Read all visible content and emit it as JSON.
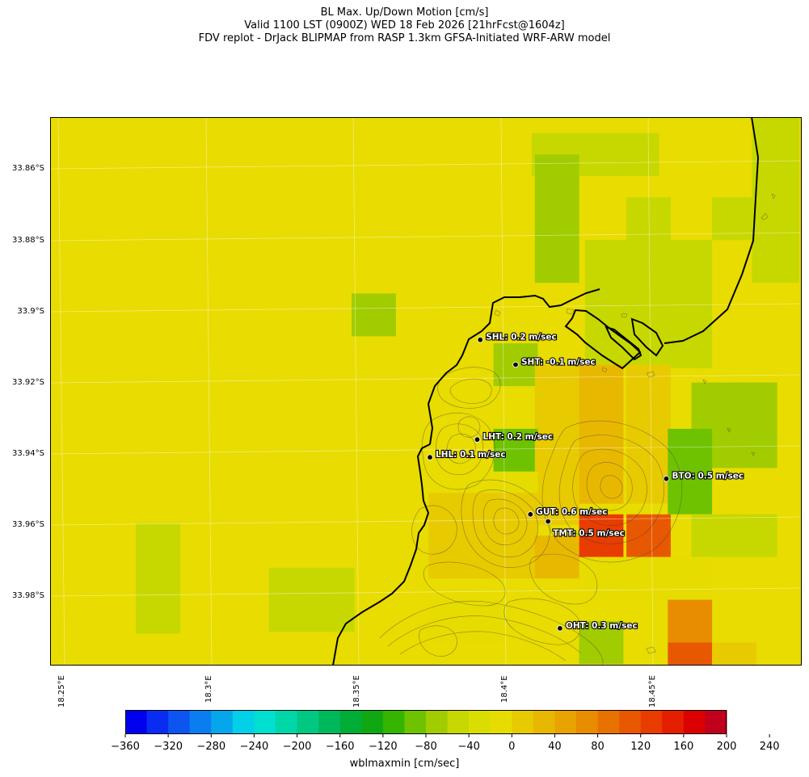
{
  "title": {
    "line1": "BL Max. Up/Down Motion [cm/s]",
    "line2": "Valid 1100 LST (0900Z) WED 18 Feb 2026 [21hrFcst@1604z]",
    "line3": "FDV replot - DrJack BLIPMAP from RASP 1.3km GFSA-Initiated WRF-ARW model"
  },
  "lat_labels": [
    "33.86°S",
    "33.88°S",
    "33.9°S",
    "33.92°S",
    "33.94°S",
    "33.96°S",
    "33.98°S"
  ],
  "lon_labels": [
    "18.25°E",
    "18.3°E",
    "18.35°E",
    "18.4°E",
    "18.45°E"
  ],
  "stations": [
    {
      "code": "SHL",
      "label": "SHL: 0.2 m/sec",
      "lon": 18.392,
      "lat": -33.908
    },
    {
      "code": "SHT",
      "label": "SHT: -0.1 m/sec",
      "lon": 18.404,
      "lat": -33.915
    },
    {
      "code": "LHT",
      "label": "LHT: 0.2 m/sec",
      "lon": 18.391,
      "lat": -33.936
    },
    {
      "code": "LHL",
      "label": "LHL: 0.1 m/sec",
      "lon": 18.375,
      "lat": -33.941
    },
    {
      "code": "BTO",
      "label": "BTO: 0.5 m/sec",
      "lon": 18.455,
      "lat": -33.947
    },
    {
      "code": "GUT",
      "label": "GUT: 0.6 m/sec",
      "lon": 18.409,
      "lat": -33.957
    },
    {
      "code": "TMT",
      "label": "TMT: 0.5 m/sec",
      "lon": 18.415,
      "lat": -33.959
    },
    {
      "code": "OHT",
      "label": "OHT: 0.3 m/sec",
      "lon": 18.419,
      "lat": -33.989
    }
  ],
  "colorbar": {
    "ticks": [
      "−360",
      "−320",
      "−280",
      "−240",
      "−200",
      "−160",
      "−120",
      "−80",
      "−40",
      "0",
      "40",
      "80",
      "120",
      "160",
      "200",
      "240"
    ],
    "label": "wblmaxmin [cm/sec]",
    "colors": [
      "#0000ee",
      "#0a2cf2",
      "#0c55f0",
      "#0a7ef0",
      "#06a6ec",
      "#02cfe8",
      "#00dfd0",
      "#00d6a8",
      "#00c882",
      "#00b85c",
      "#00ad36",
      "#10a812",
      "#35b500",
      "#6ec200",
      "#a0cc00",
      "#c6d800",
      "#dade00",
      "#e6dc00",
      "#e8ca00",
      "#e8b800",
      "#e8a300",
      "#e88c00",
      "#e87200",
      "#e85800",
      "#e83c00",
      "#e61e00",
      "#dc0000",
      "#c0001c"
    ]
  },
  "field": {
    "background_color": "#e8dc00",
    "cells_value_cm_s": [
      {
        "lon": 18.283,
        "lat": -33.975,
        "v": -20,
        "w": 0.015,
        "h": 0.031
      },
      {
        "lon": 18.335,
        "lat": -33.981,
        "v": -20,
        "w": 0.029,
        "h": 0.018
      },
      {
        "lon": 18.356,
        "lat": -33.901,
        "v": -30,
        "w": 0.015,
        "h": 0.012
      },
      {
        "lon": 18.431,
        "lat": -33.856,
        "v": -20,
        "w": 0.043,
        "h": 0.012
      },
      {
        "lon": 18.418,
        "lat": -33.874,
        "v": -30,
        "w": 0.015,
        "h": 0.036
      },
      {
        "lon": 18.449,
        "lat": -33.874,
        "v": -20,
        "w": 0.015,
        "h": 0.012
      },
      {
        "lon": 18.449,
        "lat": -33.898,
        "v": -20,
        "w": 0.043,
        "h": 0.036
      },
      {
        "lon": 18.478,
        "lat": -33.874,
        "v": -20,
        "w": 0.015,
        "h": 0.012
      },
      {
        "lon": 18.492,
        "lat": -33.868,
        "v": -20,
        "w": 0.016,
        "h": 0.048
      },
      {
        "lon": 18.404,
        "lat": -33.915,
        "v": -40,
        "w": 0.015,
        "h": 0.012
      },
      {
        "lon": 18.418,
        "lat": -33.927,
        "v": 60,
        "w": 0.015,
        "h": 0.024
      },
      {
        "lon": 18.433,
        "lat": -33.927,
        "v": 80,
        "w": 0.015,
        "h": 0.024
      },
      {
        "lon": 18.449,
        "lat": -33.927,
        "v": 60,
        "w": 0.015,
        "h": 0.024
      },
      {
        "lon": 18.478,
        "lat": -33.932,
        "v": -40,
        "w": 0.029,
        "h": 0.024
      },
      {
        "lon": 18.404,
        "lat": -33.939,
        "v": -60,
        "w": 0.015,
        "h": 0.012
      },
      {
        "lon": 18.418,
        "lat": -33.948,
        "v": 60,
        "w": 0.015,
        "h": 0.024
      },
      {
        "lon": 18.433,
        "lat": -33.945,
        "v": 80,
        "w": 0.015,
        "h": 0.018
      },
      {
        "lon": 18.449,
        "lat": -33.945,
        "v": 60,
        "w": 0.015,
        "h": 0.018
      },
      {
        "lon": 18.463,
        "lat": -33.945,
        "v": -50,
        "w": 0.015,
        "h": 0.024
      },
      {
        "lon": 18.404,
        "lat": -33.951,
        "v": 40,
        "w": 0.015,
        "h": 0.012
      },
      {
        "lon": 18.389,
        "lat": -33.963,
        "v": 60,
        "w": 0.029,
        "h": 0.024
      },
      {
        "lon": 18.404,
        "lat": -33.963,
        "v": 60,
        "w": 0.015,
        "h": 0.024
      },
      {
        "lon": 18.433,
        "lat": -33.963,
        "v": 200,
        "w": 0.015,
        "h": 0.012
      },
      {
        "lon": 18.449,
        "lat": -33.963,
        "v": 160,
        "w": 0.015,
        "h": 0.012
      },
      {
        "lon": 18.418,
        "lat": -33.969,
        "v": 80,
        "w": 0.015,
        "h": 0.012
      },
      {
        "lon": 18.478,
        "lat": -33.963,
        "v": -20,
        "w": 0.029,
        "h": 0.012
      },
      {
        "lon": 18.449,
        "lat": -33.975,
        "v": 40,
        "w": 0.043,
        "h": 0.012
      },
      {
        "lon": 18.463,
        "lat": -33.975,
        "v": 40,
        "w": 0.015,
        "h": 0.012
      },
      {
        "lon": 18.389,
        "lat": -33.987,
        "v": 40,
        "w": 0.029,
        "h": 0.012
      },
      {
        "lon": 18.463,
        "lat": -33.987,
        "v": 120,
        "w": 0.015,
        "h": 0.012
      },
      {
        "lon": 18.433,
        "lat": -33.993,
        "v": -30,
        "w": 0.015,
        "h": 0.012
      },
      {
        "lon": 18.463,
        "lat": -33.999,
        "v": 160,
        "w": 0.015,
        "h": 0.012
      },
      {
        "lon": 18.478,
        "lat": -33.999,
        "v": 60,
        "w": 0.015,
        "h": 0.012
      }
    ]
  }
}
